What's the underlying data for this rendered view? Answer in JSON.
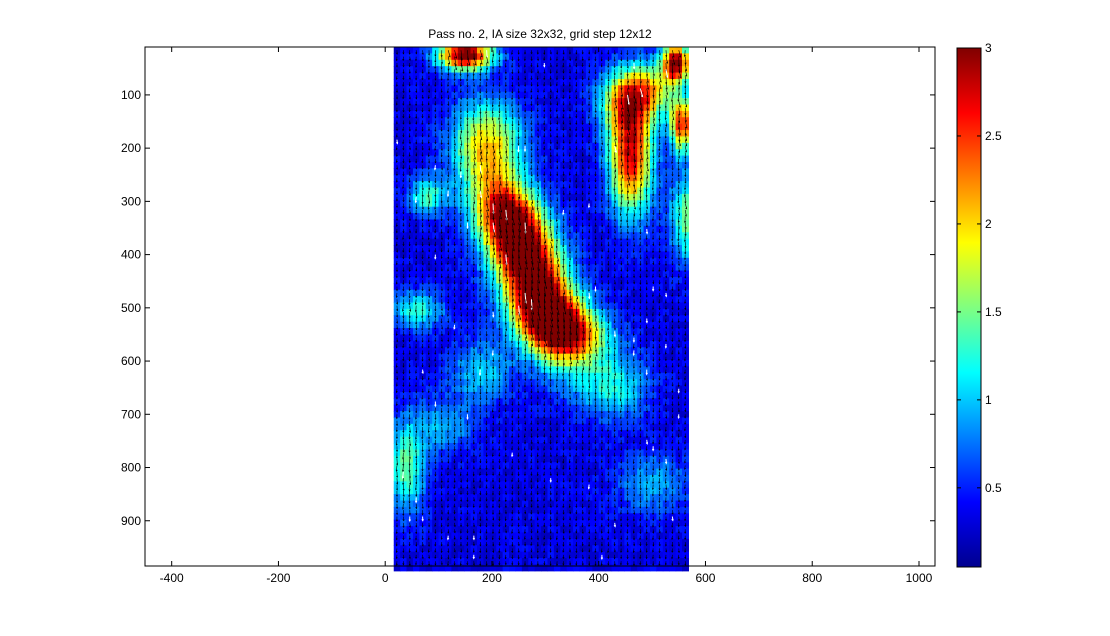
{
  "figure": {
    "title": "Pass no. 2, IA size 32x32, grid step 12x12"
  },
  "chart_data": {
    "type": "heatmap",
    "subtype": "vector-field-over-magnitude-map",
    "title": "Pass no. 2, IA size 32x32, grid step 12x12",
    "xlabel": "",
    "ylabel": "",
    "xlim": [
      -450,
      1030
    ],
    "ylim": [
      985,
      10
    ],
    "y_axis_reversed": true,
    "x_ticks": [
      -400,
      -200,
      0,
      200,
      400,
      600,
      800,
      1000
    ],
    "x_tick_labels": [
      "-400",
      "-200",
      "0",
      "200",
      "400",
      "600",
      "800",
      "1000"
    ],
    "y_ticks": [
      100,
      200,
      300,
      400,
      500,
      600,
      700,
      800,
      900
    ],
    "y_tick_labels": [
      "100",
      "200",
      "300",
      "400",
      "500",
      "600",
      "700",
      "800",
      "900"
    ],
    "field_extent": {
      "x": [
        16,
        565
      ],
      "y": [
        10,
        985
      ]
    },
    "grid_step": [
      12,
      12
    ],
    "colormap": "jet",
    "colorbar": {
      "range": [
        0.05,
        3
      ],
      "ticks": [
        0.5,
        1,
        1.5,
        2,
        2.5,
        3
      ],
      "tick_labels": [
        "0.5",
        "1",
        "1.5",
        "2",
        "2.5",
        "3"
      ],
      "placement": "right"
    },
    "hotspots": [
      {
        "x": 280,
        "y": 450,
        "sx": 55,
        "sy": 95,
        "rho": 0.55,
        "value": 2.9
      },
      {
        "x": 335,
        "y": 540,
        "sx": 55,
        "sy": 40,
        "rho": 0.3,
        "value": 2.0
      },
      {
        "x": 230,
        "y": 330,
        "sx": 45,
        "sy": 55,
        "rho": 0.3,
        "value": 1.9
      },
      {
        "x": 190,
        "y": 190,
        "sx": 45,
        "sy": 55,
        "rho": 0.0,
        "value": 1.6
      },
      {
        "x": 460,
        "y": 215,
        "sx": 28,
        "sy": 75,
        "rho": 0.0,
        "value": 2.4
      },
      {
        "x": 450,
        "y": 110,
        "sx": 35,
        "sy": 40,
        "rho": 0.0,
        "value": 1.5
      },
      {
        "x": 150,
        "y": 25,
        "sx": 35,
        "sy": 20,
        "rho": 0.0,
        "value": 2.9
      },
      {
        "x": 545,
        "y": 40,
        "sx": 18,
        "sy": 25,
        "rho": 0.0,
        "value": 2.8
      },
      {
        "x": 555,
        "y": 155,
        "sx": 15,
        "sy": 35,
        "rho": 0.0,
        "value": 2.2
      },
      {
        "x": 500,
        "y": 90,
        "sx": 30,
        "sy": 35,
        "rho": 0.0,
        "value": 1.2
      },
      {
        "x": 570,
        "y": 330,
        "sx": 25,
        "sy": 60,
        "rho": 0.0,
        "value": 1.2
      },
      {
        "x": 40,
        "y": 800,
        "sx": 25,
        "sy": 60,
        "rho": 0.0,
        "value": 1.1
      },
      {
        "x": 80,
        "y": 290,
        "sx": 25,
        "sy": 25,
        "rho": 0.0,
        "value": 1.0
      },
      {
        "x": 60,
        "y": 505,
        "sx": 35,
        "sy": 25,
        "rho": 0.0,
        "value": 0.9
      },
      {
        "x": 180,
        "y": 620,
        "sx": 40,
        "sy": 40,
        "rho": 0.0,
        "value": 0.7
      },
      {
        "x": 430,
        "y": 650,
        "sx": 45,
        "sy": 40,
        "rho": 0.0,
        "value": 0.8
      },
      {
        "x": 500,
        "y": 830,
        "sx": 45,
        "sy": 40,
        "rho": 0.0,
        "value": 0.6
      },
      {
        "x": 110,
        "y": 720,
        "sx": 40,
        "sy": 35,
        "rho": 0.0,
        "value": 0.6
      }
    ],
    "background_value": 0.35
  }
}
